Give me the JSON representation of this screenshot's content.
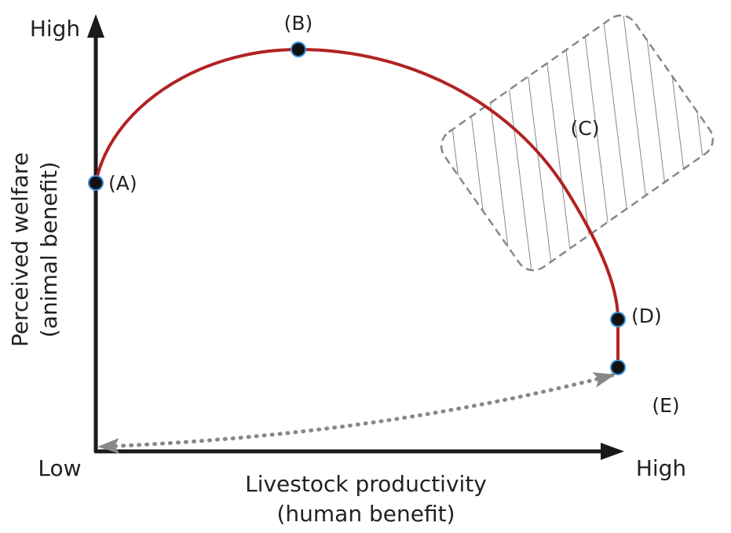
{
  "axes": {
    "y_high": "High",
    "x_low": "Low",
    "x_high": "High",
    "y_label": [
      "Perceived welfare",
      "(animal benefit)"
    ],
    "x_label": [
      "Livestock productivity",
      "(human benefit)"
    ]
  },
  "points": [
    {
      "label": "(A)"
    },
    {
      "label": "(B)"
    },
    {
      "label": "(C)"
    },
    {
      "label": "(D)"
    },
    {
      "label": "(E)"
    }
  ]
}
